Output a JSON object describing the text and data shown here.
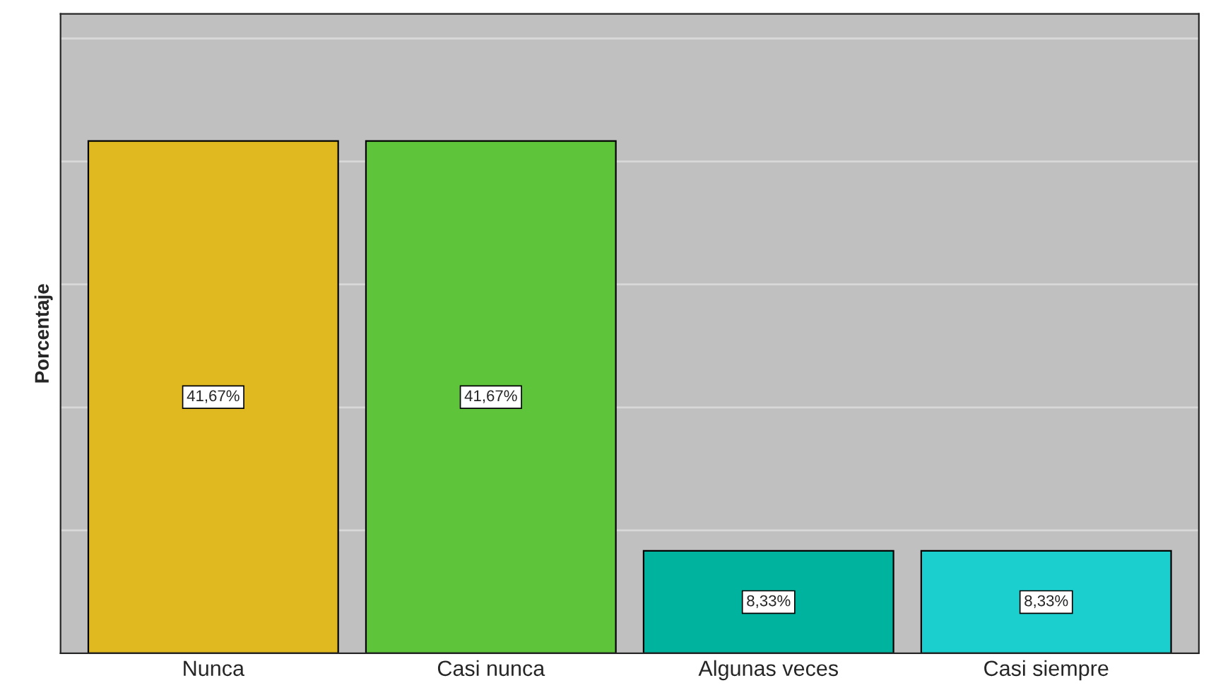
{
  "chart_data": {
    "type": "bar",
    "ylabel": "Porcentaje",
    "categories": [
      "Nunca",
      "Casi nunca",
      "Algunas veces",
      "Casi siempre"
    ],
    "values": [
      41.67,
      41.67,
      8.33,
      8.33
    ],
    "colors": [
      "#e0b820",
      "#5ec43a",
      "#00b39e",
      "#1ccfcf"
    ],
    "value_labels": [
      "41,67%",
      "41,67%",
      "8,33%",
      "8,33%"
    ],
    "ylim": [
      0,
      52
    ],
    "yticks": [
      {
        "value": 0,
        "label": null
      },
      {
        "value": 10,
        "label": null
      },
      {
        "value": 20,
        "label": null
      },
      {
        "value": 30,
        "label": null
      },
      {
        "value": 40,
        "label": null
      },
      {
        "value": 50,
        "label": null
      }
    ],
    "grid": "y",
    "tick_labels": "x"
  }
}
